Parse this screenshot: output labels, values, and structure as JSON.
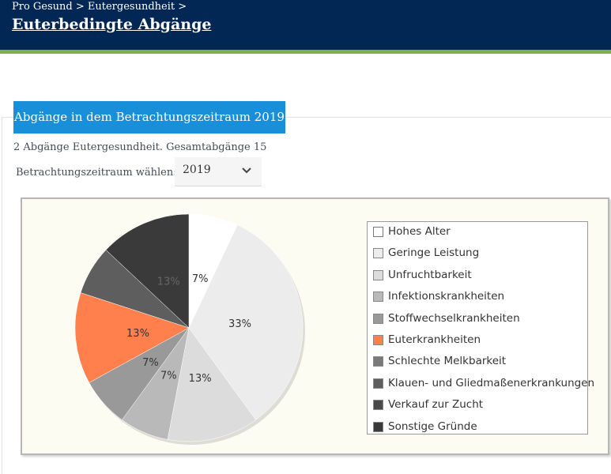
{
  "header": {
    "breadcrumb": "Pro Gesund > Eutergesundheit >",
    "title": "Euterbedingte Abgänge"
  },
  "tab": {
    "label": "Abgänge in dem Betrachtungszeitraum 2019"
  },
  "summary": "2 Abgänge Eutergesundheit. Gesamtabgänge 15",
  "period": {
    "label": "Betrachtungszeitraum wählen:",
    "value": "2019"
  },
  "chart_data": {
    "type": "pie",
    "total": 15,
    "slices": [
      {
        "name": "Hohes Alter",
        "percent": 7,
        "label": "7%",
        "color": "#ffffff"
      },
      {
        "name": "Geringe Leistung",
        "percent": 33,
        "label": "33%",
        "color": "#ececec"
      },
      {
        "name": "Unfruchtbarkeit",
        "percent": 13,
        "label": "13%",
        "color": "#dcdcdc"
      },
      {
        "name": "Infektionskrankheiten",
        "percent": 7,
        "label": "7%",
        "color": "#b9b9b9"
      },
      {
        "name": "Stoffwechselkrankheiten",
        "percent": 7,
        "label": "7%",
        "color": "#999999"
      },
      {
        "name": "Euterkrankheiten",
        "percent": 13,
        "label": "13%",
        "color": "#ff7f4d"
      },
      {
        "name": "Schlechte Melkbarkeit",
        "percent": 0,
        "label": "",
        "color": "#7a7a7a"
      },
      {
        "name": "Klauen- und Gliedmaßenerkrankungen",
        "percent": 7,
        "label": "",
        "color": "#5e5e5e"
      },
      {
        "name": "Verkauf zur Zucht",
        "percent": 0,
        "label": "",
        "color": "#4a4a4a"
      },
      {
        "name": "Sonstige Gründe",
        "percent": 13,
        "label": "13%",
        "color": "#3a3a3a"
      }
    ],
    "legend": "right"
  }
}
